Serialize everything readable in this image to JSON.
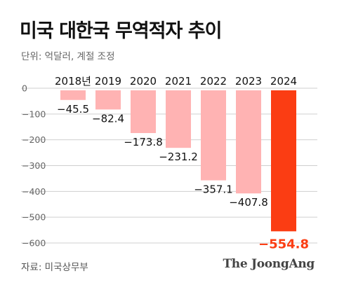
{
  "title": "미국 대한국 무역적자 추이",
  "unit_text": "단위: 억달러, 계절 조정",
  "source_text": "자료: 미국상무부",
  "brand_text": "The JoongAng",
  "colors": {
    "bar": "#ffb3b3",
    "highlight": "#fb3d13",
    "grid": "#cfcfcf",
    "text": "#111111"
  },
  "chart_data": {
    "type": "bar",
    "categories": [
      "2018년",
      "2019",
      "2020",
      "2021",
      "2022",
      "2023",
      "2024"
    ],
    "values": [
      -45.5,
      -82.4,
      -173.8,
      -231.2,
      -357.1,
      -407.8,
      -554.8
    ],
    "value_labels": [
      "−45.5",
      "−82.4",
      "−173.8",
      "−231.2",
      "−357.1",
      "−407.8",
      "−554.8"
    ],
    "highlight_index": 6,
    "title": "미국 대한국 무역적자 추이",
    "xlabel": "",
    "ylabel": "",
    "ylim": [
      -600,
      0
    ],
    "yticks": [
      0,
      -100,
      -200,
      -300,
      -400,
      -500,
      -600
    ],
    "ytick_labels": [
      "0",
      "−100",
      "−200",
      "−300",
      "−400",
      "−500",
      "−600"
    ],
    "grid": true
  }
}
